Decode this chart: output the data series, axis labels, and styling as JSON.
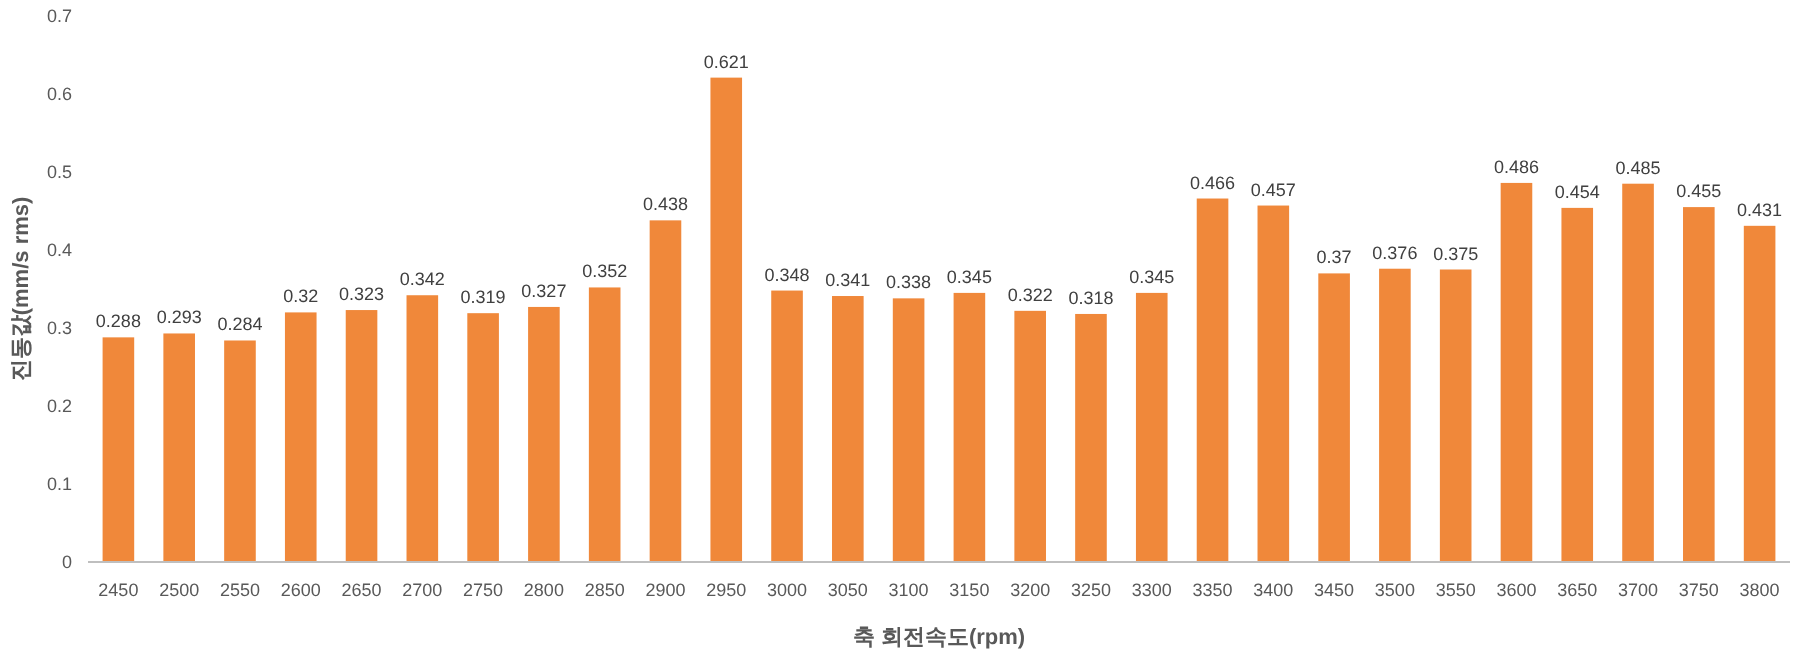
{
  "chart_data": {
    "type": "bar",
    "xlabel": "축 회전속도(rpm)",
    "ylabel": "진동값(mm/s rms)",
    "categories": [
      "2450",
      "2500",
      "2550",
      "2600",
      "2650",
      "2700",
      "2750",
      "2800",
      "2850",
      "2900",
      "2950",
      "3000",
      "3050",
      "3100",
      "3150",
      "3200",
      "3250",
      "3300",
      "3350",
      "3400",
      "3450",
      "3500",
      "3550",
      "3600",
      "3650",
      "3700",
      "3750",
      "3800"
    ],
    "values": [
      0.288,
      0.293,
      0.284,
      0.32,
      0.323,
      0.342,
      0.319,
      0.327,
      0.352,
      0.438,
      0.621,
      0.348,
      0.341,
      0.338,
      0.345,
      0.322,
      0.318,
      0.345,
      0.466,
      0.457,
      0.37,
      0.376,
      0.375,
      0.486,
      0.454,
      0.485,
      0.455,
      0.431
    ],
    "color": "#f0883a",
    "ylim": [
      0,
      0.7
    ],
    "yticks": [
      0,
      0.1,
      0.2,
      0.3,
      0.4,
      0.5,
      0.6,
      0.7
    ],
    "grid": false,
    "data_labels": true
  }
}
